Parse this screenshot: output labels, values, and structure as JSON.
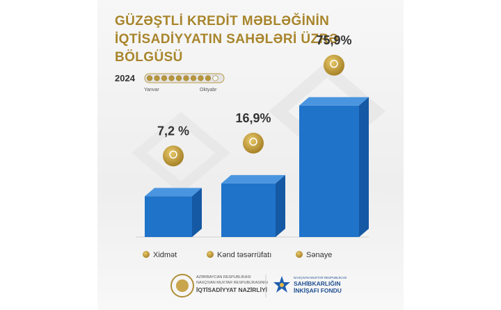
{
  "chart_data": {
    "type": "bar",
    "title": [
      "GÜZƏŞTLİ KREDİT MƏBLƏĞİNİN",
      "İQTİSADİYYATIN SAHƏLƏRİ ÜZRƏ",
      "BÖLGÜSÜ"
    ],
    "period": {
      "year": "2024",
      "start": "Yanvar",
      "end": "Oktyabr"
    },
    "categories": [
      "Xidmət",
      "Kənd təsərrüfatı",
      "Sənaye"
    ],
    "values": [
      7.2,
      16.9,
      75.9
    ],
    "value_labels": [
      "7,2 %",
      "16,9%",
      "75,9%"
    ],
    "color": "#1f73c9"
  },
  "footer": {
    "left": [
      "AZƏRBAYCAN RESPUBLİKASI",
      "NAXÇIVAN MUXTAR RESPUBLİKASININ",
      "İQTİSADİYYAT NAZİRLİYİ"
    ],
    "right": [
      "NAXÇIVAN MUXTAR RESPUBLİKASI",
      "SAHİBKARLIĞIN",
      "İNKİŞAFI FONDU"
    ]
  }
}
